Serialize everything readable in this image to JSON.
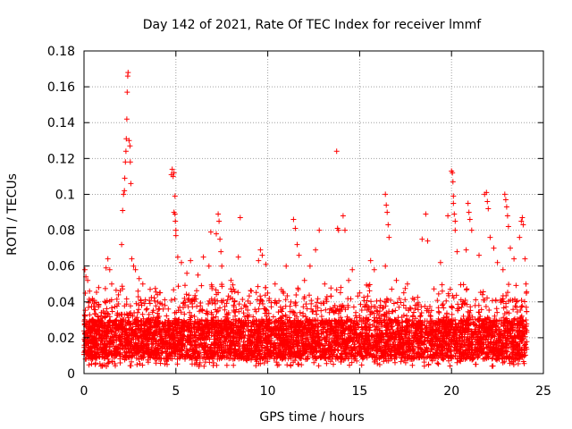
{
  "chart_data": {
    "type": "scatter",
    "title": "Day 142 of 2021, Rate Of TEC Index for receiver lmmf",
    "xlabel": "GPS time / hours",
    "ylabel": "ROTI / TECUs",
    "xlim": [
      0,
      25
    ],
    "ylim": [
      0,
      0.18
    ],
    "grid": true,
    "marker": "+",
    "colors": {
      "points": "#ff0000",
      "grid": "#a0a0a0",
      "axis": "#000000"
    },
    "x_ticks": [
      {
        "value": 0,
        "label": "0"
      },
      {
        "value": 5,
        "label": "5"
      },
      {
        "value": 10,
        "label": "10"
      },
      {
        "value": 15,
        "label": "15"
      },
      {
        "value": 20,
        "label": "20"
      },
      {
        "value": 25,
        "label": "25"
      }
    ],
    "y_ticks": [
      {
        "value": 0,
        "label": "0"
      },
      {
        "value": 0.02,
        "label": "0.02"
      },
      {
        "value": 0.04,
        "label": "0.04"
      },
      {
        "value": 0.06,
        "label": "0.06"
      },
      {
        "value": 0.08,
        "label": "0.08"
      },
      {
        "value": 0.1,
        "label": "0.1"
      },
      {
        "value": 0.12,
        "label": "0.12"
      },
      {
        "value": 0.14,
        "label": "0.14"
      },
      {
        "value": 0.16,
        "label": "0.16"
      },
      {
        "value": 0.18,
        "label": "0.18"
      }
    ],
    "background_density": {
      "x_range": [
        0,
        24.1
      ],
      "points_per_hour": 230,
      "typical_range": [
        0.008,
        0.03
      ]
    },
    "notable_points": [
      {
        "x": 0.05,
        "y": 0.058
      },
      {
        "x": 0.1,
        "y": 0.054
      },
      {
        "x": 0.2,
        "y": 0.052
      },
      {
        "x": 0.3,
        "y": 0.046
      },
      {
        "x": 0.8,
        "y": 0.048
      },
      {
        "x": 1.2,
        "y": 0.059
      },
      {
        "x": 1.3,
        "y": 0.064
      },
      {
        "x": 1.4,
        "y": 0.058
      },
      {
        "x": 2.05,
        "y": 0.072
      },
      {
        "x": 2.1,
        "y": 0.091
      },
      {
        "x": 2.15,
        "y": 0.1
      },
      {
        "x": 2.2,
        "y": 0.102
      },
      {
        "x": 2.22,
        "y": 0.109
      },
      {
        "x": 2.25,
        "y": 0.118
      },
      {
        "x": 2.28,
        "y": 0.124
      },
      {
        "x": 2.3,
        "y": 0.131
      },
      {
        "x": 2.33,
        "y": 0.142
      },
      {
        "x": 2.35,
        "y": 0.157
      },
      {
        "x": 2.38,
        "y": 0.166
      },
      {
        "x": 2.4,
        "y": 0.168
      },
      {
        "x": 2.45,
        "y": 0.13
      },
      {
        "x": 2.5,
        "y": 0.127
      },
      {
        "x": 2.52,
        "y": 0.118
      },
      {
        "x": 2.55,
        "y": 0.106
      },
      {
        "x": 2.6,
        "y": 0.064
      },
      {
        "x": 2.7,
        "y": 0.06
      },
      {
        "x": 2.8,
        "y": 0.058
      },
      {
        "x": 3.0,
        "y": 0.053
      },
      {
        "x": 3.2,
        "y": 0.05
      },
      {
        "x": 3.6,
        "y": 0.047
      },
      {
        "x": 4.0,
        "y": 0.044
      },
      {
        "x": 4.75,
        "y": 0.111
      },
      {
        "x": 4.8,
        "y": 0.114
      },
      {
        "x": 4.85,
        "y": 0.11
      },
      {
        "x": 4.9,
        "y": 0.112
      },
      {
        "x": 4.95,
        "y": 0.099
      },
      {
        "x": 4.95,
        "y": 0.089
      },
      {
        "x": 4.9,
        "y": 0.09
      },
      {
        "x": 4.97,
        "y": 0.085
      },
      {
        "x": 5.0,
        "y": 0.08
      },
      {
        "x": 5.0,
        "y": 0.077
      },
      {
        "x": 5.1,
        "y": 0.065
      },
      {
        "x": 5.3,
        "y": 0.062
      },
      {
        "x": 5.8,
        "y": 0.063
      },
      {
        "x": 5.6,
        "y": 0.056
      },
      {
        "x": 6.2,
        "y": 0.055
      },
      {
        "x": 6.5,
        "y": 0.065
      },
      {
        "x": 6.8,
        "y": 0.06
      },
      {
        "x": 6.9,
        "y": 0.079
      },
      {
        "x": 7.2,
        "y": 0.078
      },
      {
        "x": 7.3,
        "y": 0.089
      },
      {
        "x": 7.35,
        "y": 0.085
      },
      {
        "x": 7.4,
        "y": 0.075
      },
      {
        "x": 7.45,
        "y": 0.068
      },
      {
        "x": 7.5,
        "y": 0.06
      },
      {
        "x": 8.0,
        "y": 0.052
      },
      {
        "x": 8.4,
        "y": 0.065
      },
      {
        "x": 8.5,
        "y": 0.087
      },
      {
        "x": 9.5,
        "y": 0.063
      },
      {
        "x": 9.6,
        "y": 0.069
      },
      {
        "x": 9.7,
        "y": 0.066
      },
      {
        "x": 9.9,
        "y": 0.061
      },
      {
        "x": 10.4,
        "y": 0.05
      },
      {
        "x": 11.0,
        "y": 0.06
      },
      {
        "x": 11.4,
        "y": 0.086
      },
      {
        "x": 11.5,
        "y": 0.081
      },
      {
        "x": 11.6,
        "y": 0.072
      },
      {
        "x": 11.7,
        "y": 0.066
      },
      {
        "x": 12.0,
        "y": 0.052
      },
      {
        "x": 12.3,
        "y": 0.06
      },
      {
        "x": 12.6,
        "y": 0.069
      },
      {
        "x": 12.8,
        "y": 0.08
      },
      {
        "x": 13.1,
        "y": 0.05
      },
      {
        "x": 13.75,
        "y": 0.124
      },
      {
        "x": 13.8,
        "y": 0.081
      },
      {
        "x": 13.85,
        "y": 0.08
      },
      {
        "x": 14.1,
        "y": 0.088
      },
      {
        "x": 14.2,
        "y": 0.08
      },
      {
        "x": 14.4,
        "y": 0.052
      },
      {
        "x": 14.6,
        "y": 0.058
      },
      {
        "x": 15.0,
        "y": 0.045
      },
      {
        "x": 15.6,
        "y": 0.063
      },
      {
        "x": 15.8,
        "y": 0.058
      },
      {
        "x": 16.4,
        "y": 0.1
      },
      {
        "x": 16.45,
        "y": 0.094
      },
      {
        "x": 16.5,
        "y": 0.09
      },
      {
        "x": 16.55,
        "y": 0.083
      },
      {
        "x": 16.6,
        "y": 0.076
      },
      {
        "x": 16.4,
        "y": 0.06
      },
      {
        "x": 17.0,
        "y": 0.052
      },
      {
        "x": 17.6,
        "y": 0.05
      },
      {
        "x": 18.4,
        "y": 0.075
      },
      {
        "x": 18.6,
        "y": 0.089
      },
      {
        "x": 18.7,
        "y": 0.074
      },
      {
        "x": 19.4,
        "y": 0.062
      },
      {
        "x": 19.8,
        "y": 0.088
      },
      {
        "x": 20.0,
        "y": 0.113
      },
      {
        "x": 20.05,
        "y": 0.112
      },
      {
        "x": 20.08,
        "y": 0.107
      },
      {
        "x": 20.1,
        "y": 0.099
      },
      {
        "x": 20.1,
        "y": 0.095
      },
      {
        "x": 20.15,
        "y": 0.089
      },
      {
        "x": 20.2,
        "y": 0.085
      },
      {
        "x": 20.2,
        "y": 0.08
      },
      {
        "x": 20.3,
        "y": 0.068
      },
      {
        "x": 20.8,
        "y": 0.069
      },
      {
        "x": 20.9,
        "y": 0.095
      },
      {
        "x": 20.95,
        "y": 0.09
      },
      {
        "x": 21.0,
        "y": 0.086
      },
      {
        "x": 21.1,
        "y": 0.08
      },
      {
        "x": 21.5,
        "y": 0.066
      },
      {
        "x": 21.8,
        "y": 0.1
      },
      {
        "x": 21.9,
        "y": 0.101
      },
      {
        "x": 21.95,
        "y": 0.096
      },
      {
        "x": 22.0,
        "y": 0.092
      },
      {
        "x": 22.1,
        "y": 0.076
      },
      {
        "x": 22.3,
        "y": 0.07
      },
      {
        "x": 22.5,
        "y": 0.062
      },
      {
        "x": 22.8,
        "y": 0.058
      },
      {
        "x": 22.9,
        "y": 0.1
      },
      {
        "x": 22.95,
        "y": 0.097
      },
      {
        "x": 23.0,
        "y": 0.093
      },
      {
        "x": 23.05,
        "y": 0.088
      },
      {
        "x": 23.1,
        "y": 0.082
      },
      {
        "x": 23.2,
        "y": 0.07
      },
      {
        "x": 23.4,
        "y": 0.064
      },
      {
        "x": 23.7,
        "y": 0.076
      },
      {
        "x": 23.8,
        "y": 0.085
      },
      {
        "x": 23.85,
        "y": 0.087
      },
      {
        "x": 23.9,
        "y": 0.083
      },
      {
        "x": 24.0,
        "y": 0.064
      },
      {
        "x": 24.05,
        "y": 0.05
      }
    ]
  }
}
